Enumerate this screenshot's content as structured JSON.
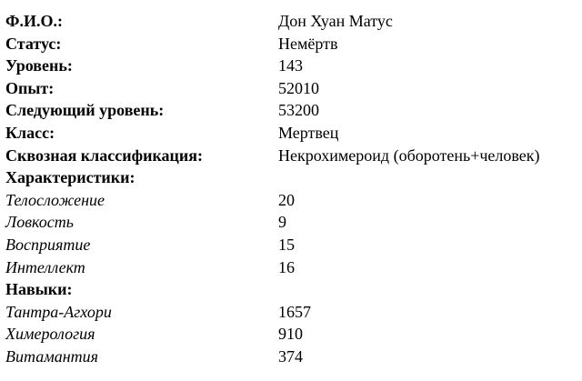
{
  "fields": [
    {
      "label": "Ф.И.О.:",
      "value": "Дон Хуан Матус"
    },
    {
      "label": "Статус:",
      "value": "Немёртв"
    },
    {
      "label": "Уровень:",
      "value": "143"
    },
    {
      "label": "Опыт:",
      "value": "52010"
    },
    {
      "label": "Следующий уровень:",
      "value": "53200"
    },
    {
      "label": "Класс:",
      "value": "Мертвец"
    },
    {
      "label": "Сквозная классификация:",
      "value": "Некрохимероид (оборотень+человек)"
    }
  ],
  "characteristics": {
    "heading": "Характеристики:",
    "items": [
      {
        "label": "Телосложение",
        "value": "20"
      },
      {
        "label": "Ловкость",
        "value": "9"
      },
      {
        "label": "Восприятие",
        "value": "15"
      },
      {
        "label": "Интеллект",
        "value": "16"
      }
    ]
  },
  "skills": {
    "heading": "Навыки:",
    "items": [
      {
        "label": "Тантра-Агхори",
        "value": "1657"
      },
      {
        "label": "Химерология",
        "value": "910"
      },
      {
        "label": "Витамантия",
        "value": "374"
      }
    ]
  }
}
